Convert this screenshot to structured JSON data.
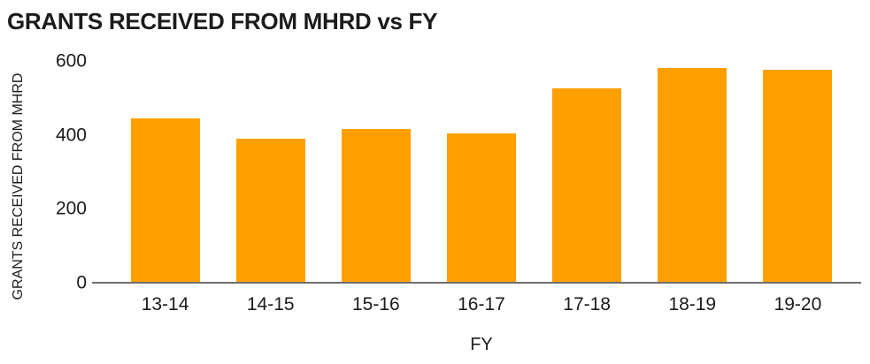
{
  "chart_data": {
    "type": "bar",
    "title": "GRANTS RECEIVED FROM MHRD vs FY",
    "categories": [
      "13-14",
      "14-15",
      "15-16",
      "16-17",
      "17-18",
      "18-19",
      "19-20"
    ],
    "values": [
      445,
      390,
      415,
      405,
      525,
      580,
      575
    ],
    "xlabel": "FY",
    "ylabel": "GRANTS RECEIVED FROM MHRD",
    "ylim": [
      0,
      600
    ],
    "yticks": [
      0,
      200,
      400,
      600
    ],
    "grid": false,
    "legend": false,
    "bar_color": "#FFA000",
    "axis_line_color": "#6E6E6E",
    "text_color": "#1B1B1B",
    "background_color": "#FFFFFF"
  }
}
